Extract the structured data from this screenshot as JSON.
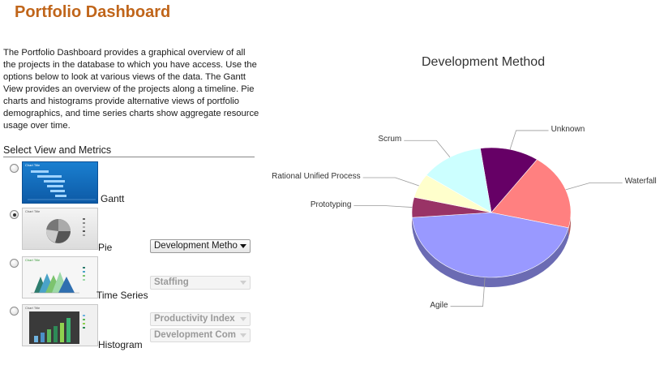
{
  "page": {
    "title": "Portfolio Dashboard"
  },
  "intro": "The Portfolio Dashboard provides a graphical overview of all the projects in the database to which you have access. Use the options below to look at various views of the data. The Gantt View provides an overview of the projects along a timeline. Pie charts and histograms provide alternative views of portfolio demographics, and time series charts show aggregate resource usage over time.",
  "section_title": "Select View and Metrics",
  "views": [
    {
      "label": "Gantt",
      "selected": false,
      "thumb_title": "Chart Title"
    },
    {
      "label": "Pie",
      "selected": true,
      "thumb_title": "Chart Title"
    },
    {
      "label": "Time Series",
      "selected": false,
      "thumb_title": "Chart Title"
    },
    {
      "label": "Histogram",
      "selected": false,
      "thumb_title": "Chart Title"
    }
  ],
  "selects": {
    "pie_metric": "Development Metho",
    "ts_metric": "Staffing",
    "hist_metric1": "Productivity Index",
    "hist_metric2": "Development Com"
  },
  "colors": {
    "title": "#c0651a"
  },
  "chart_data": {
    "type": "pie",
    "title": "Development Method",
    "slices": [
      {
        "name": "Unknown",
        "value": 12,
        "color": "#660066"
      },
      {
        "name": "Waterfall",
        "value": 19,
        "color": "#ff8080"
      },
      {
        "name": "Agile",
        "value": 45,
        "color": "#9999ff"
      },
      {
        "name": "Prototyping",
        "value": 5,
        "color": "#993366"
      },
      {
        "name": "Rational Unified Process",
        "value": 6,
        "color": "#ffffcc"
      },
      {
        "name": "Scrum",
        "value": 13,
        "color": "#ccffff"
      }
    ]
  }
}
